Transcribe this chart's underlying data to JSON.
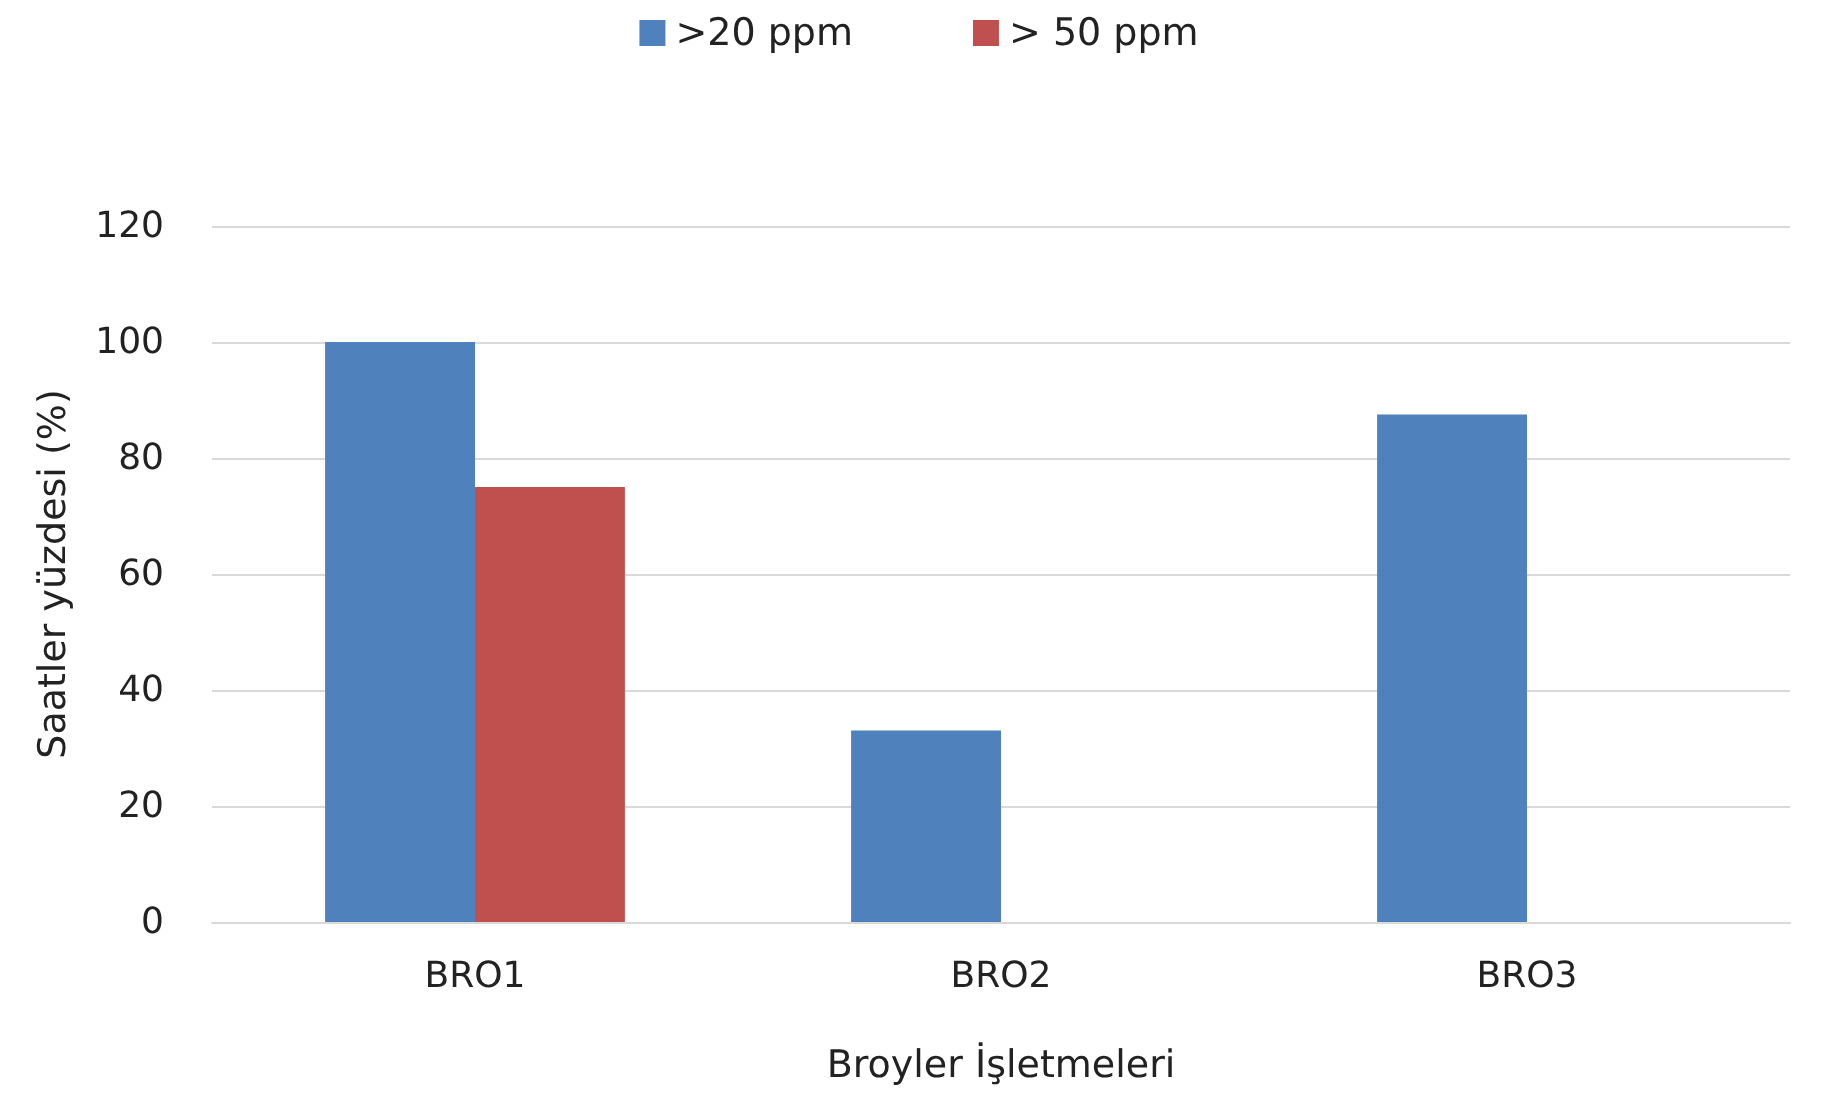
{
  "chart_data": {
    "type": "bar",
    "xlabel": "Broyler İşletmeleri",
    "ylabel": "Saatler yüzdesi (%)",
    "categories": [
      "BRO1",
      "BRO2",
      "BRO3"
    ],
    "series": [
      {
        "name": ">20 ppm",
        "color": "#4f81bd",
        "values": [
          100,
          33,
          87.5
        ]
      },
      {
        "name": "> 50 ppm",
        "color": "#c0504d",
        "values": [
          75,
          0,
          0
        ]
      }
    ],
    "ylim": [
      0,
      120
    ],
    "yticks": [
      0,
      20,
      40,
      60,
      80,
      100,
      120
    ],
    "grid": "y",
    "legend": "top"
  }
}
